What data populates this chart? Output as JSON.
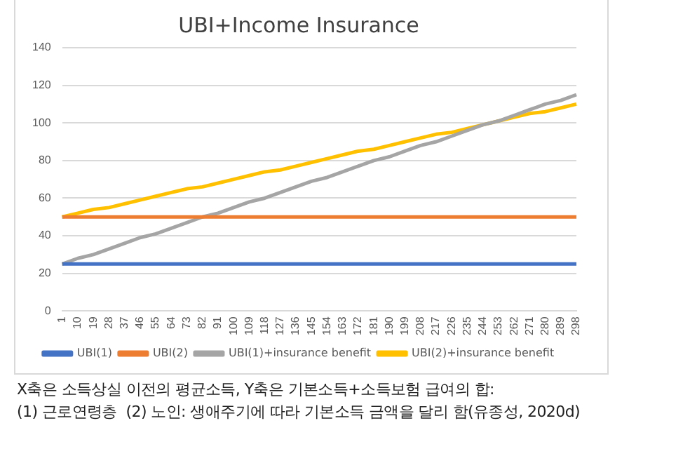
{
  "chart_data": {
    "type": "line",
    "title": "UBI+Income Insurance",
    "categories": [
      "1",
      "10",
      "19",
      "28",
      "37",
      "46",
      "55",
      "64",
      "73",
      "82",
      "91",
      "100",
      "109",
      "118",
      "127",
      "136",
      "145",
      "154",
      "163",
      "172",
      "181",
      "190",
      "199",
      "208",
      "217",
      "226",
      "235",
      "244",
      "253",
      "262",
      "271",
      "280",
      "289",
      "298"
    ],
    "series": [
      {
        "name": "UBI(1)",
        "color": "#4472c4",
        "values": [
          25,
          25,
          25,
          25,
          25,
          25,
          25,
          25,
          25,
          25,
          25,
          25,
          25,
          25,
          25,
          25,
          25,
          25,
          25,
          25,
          25,
          25,
          25,
          25,
          25,
          25,
          25,
          25,
          25,
          25,
          25,
          25,
          25,
          25
        ]
      },
      {
        "name": "UBI(2)",
        "color": "#ed7d31",
        "values": [
          50,
          50,
          50,
          50,
          50,
          50,
          50,
          50,
          50,
          50,
          50,
          50,
          50,
          50,
          50,
          50,
          50,
          50,
          50,
          50,
          50,
          50,
          50,
          50,
          50,
          50,
          50,
          50,
          50,
          50,
          50,
          50,
          50,
          50
        ]
      },
      {
        "name": "UBI(1)+insurance benefit",
        "color": "#a5a5a5",
        "values": [
          25,
          28,
          30,
          33,
          36,
          39,
          41,
          44,
          47,
          50,
          52,
          55,
          58,
          60,
          63,
          66,
          69,
          71,
          74,
          77,
          80,
          82,
          85,
          88,
          90,
          93,
          96,
          99,
          101,
          104,
          107,
          110,
          112,
          115
        ]
      },
      {
        "name": "UBI(2)+insurance benefit",
        "color": "#ffc000",
        "values": [
          50,
          52,
          54,
          55,
          57,
          59,
          61,
          63,
          65,
          66,
          68,
          70,
          72,
          74,
          75,
          77,
          79,
          81,
          83,
          85,
          86,
          88,
          90,
          92,
          94,
          95,
          97,
          99,
          101,
          103,
          105,
          106,
          108,
          110
        ]
      }
    ],
    "ylim": [
      0,
      140
    ],
    "yticks": [
      0,
      20,
      40,
      60,
      80,
      100,
      120,
      140
    ],
    "grid": "y",
    "legend": "bottom",
    "marker": "none",
    "line_style": "solid",
    "annotations": [
      "X축은 소득상실 이전의 평균소득, Y축은 기본소득+소득보험 급여의 합:",
      "(1) 근로연령층  (2) 노인: 생애주기에 따라 기본소득 금액을 달리 함(유종성, 2020d)"
    ]
  }
}
